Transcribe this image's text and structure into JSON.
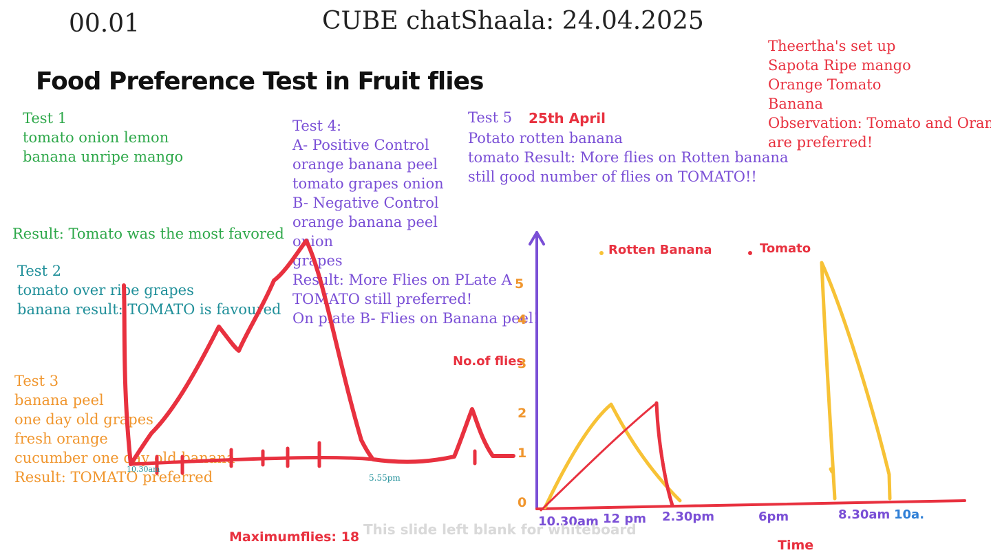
{
  "header": {
    "slide_number": "00.01",
    "title": "CUBE chatShaala: 24.04.2025"
  },
  "heading": "Food Preference Test in Fruit flies",
  "test1": {
    "lines": [
      "Test 1",
      "tomato onion lemon",
      "banana unripe mango"
    ],
    "result": "Result: Tomato was the most favored"
  },
  "test2": {
    "lines": [
      "Test 2",
      "tomato over ripe grapes",
      "banana result: TOMATO is favoured"
    ]
  },
  "test3": {
    "lines": [
      "Test 3",
      "banana peel",
      "one day old grapes",
      "fresh orange",
      "cucumber one day old banana",
      "Result: TOMATO preferred"
    ]
  },
  "test4": {
    "lines": [
      "Test 4:",
      "A- Positive Control",
      "orange banana peel",
      "tomato grapes onion",
      "B- Negative Control",
      "orange banana peel",
      "onion",
      "grapes",
      "Result: More Flies on PLate A",
      "TOMATO still preferred!",
      "On plate B- Flies on Banana peel!"
    ]
  },
  "test5": {
    "label": "Test 5",
    "date": "25th April",
    "lines": [
      "Potato rotten banana",
      "tomato Result: More flies on Rotten banana",
      "still good number of flies on TOMATO!!"
    ]
  },
  "theertha": {
    "lines": [
      "Theertha's set up",
      "Sapota Ripe mango",
      "Orange Tomato",
      "Banana",
      "Observation: Tomato and Oran",
      "are preferred!"
    ]
  },
  "left_sketch": {
    "start_time": "10.30am",
    "end_time": "5.55pm",
    "max_label": "Maximumflies: 18"
  },
  "chart_data": {
    "type": "line",
    "ylabel": "No.of flies",
    "xlabel": "Time",
    "y_ticks": [
      "0",
      "1",
      "2",
      "3",
      "4",
      "5"
    ],
    "x_ticks": [
      "10.30am",
      "12 pm",
      "2.30pm",
      "6pm",
      "8.30am",
      "10a."
    ],
    "legend": [
      "Rotten Banana",
      "Tomato"
    ],
    "colors": {
      "Rotten Banana": "#f7c236",
      "Tomato": "#e8313f",
      "axis_y": "#7a4fd6",
      "axis_x": "#e8313f"
    }
  },
  "footer": {
    "blank_note": "This slide left blank for whiteboard"
  }
}
